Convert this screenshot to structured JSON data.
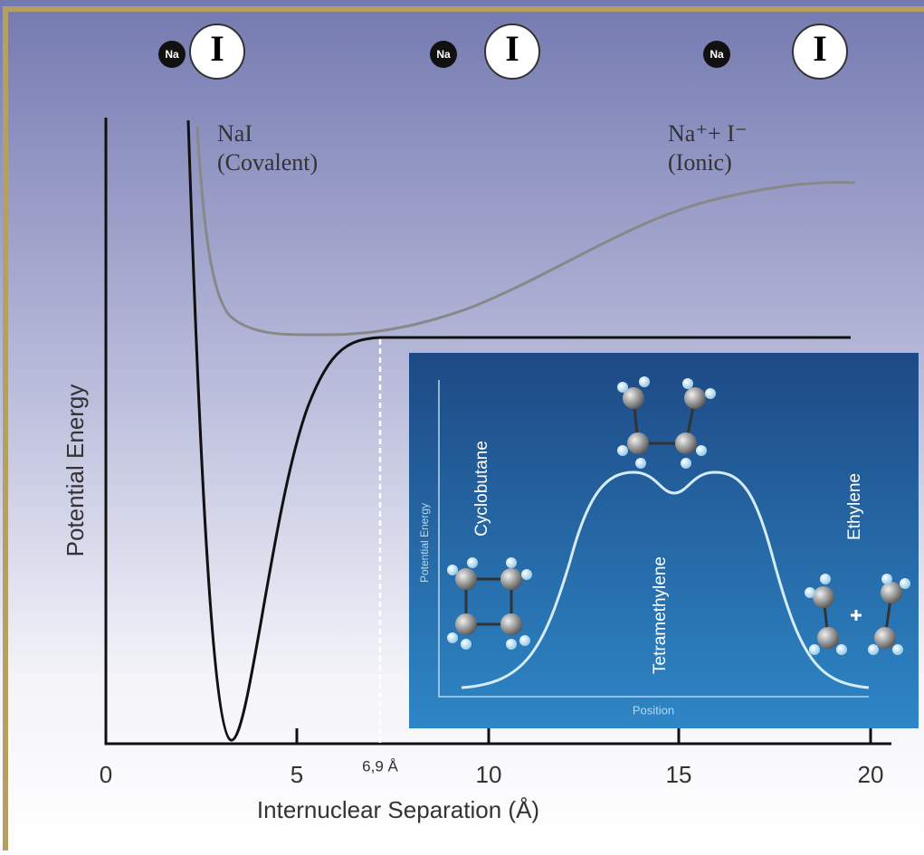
{
  "atoms": [
    {
      "small": "Na",
      "large": "I"
    },
    {
      "small": "Na",
      "large": "I"
    },
    {
      "small": "Na",
      "large": "I"
    }
  ],
  "labels": {
    "covalent_name": "NaI",
    "covalent_note": "(Covalent)",
    "ionic_name": "Na⁺+ I⁻",
    "ionic_note": "(Ionic)",
    "y_axis": "Potential Energy",
    "x_axis": "Internuclear Separation (Å)",
    "marker": "6,9 Å"
  },
  "x_ticks": [
    "0",
    "5",
    "10",
    "15",
    "20"
  ],
  "inset": {
    "y_axis": "Potential Energy",
    "x_axis": "Position",
    "states": [
      "Cyclobutane",
      "Tetramethylene",
      "Ethylene"
    ]
  }
}
